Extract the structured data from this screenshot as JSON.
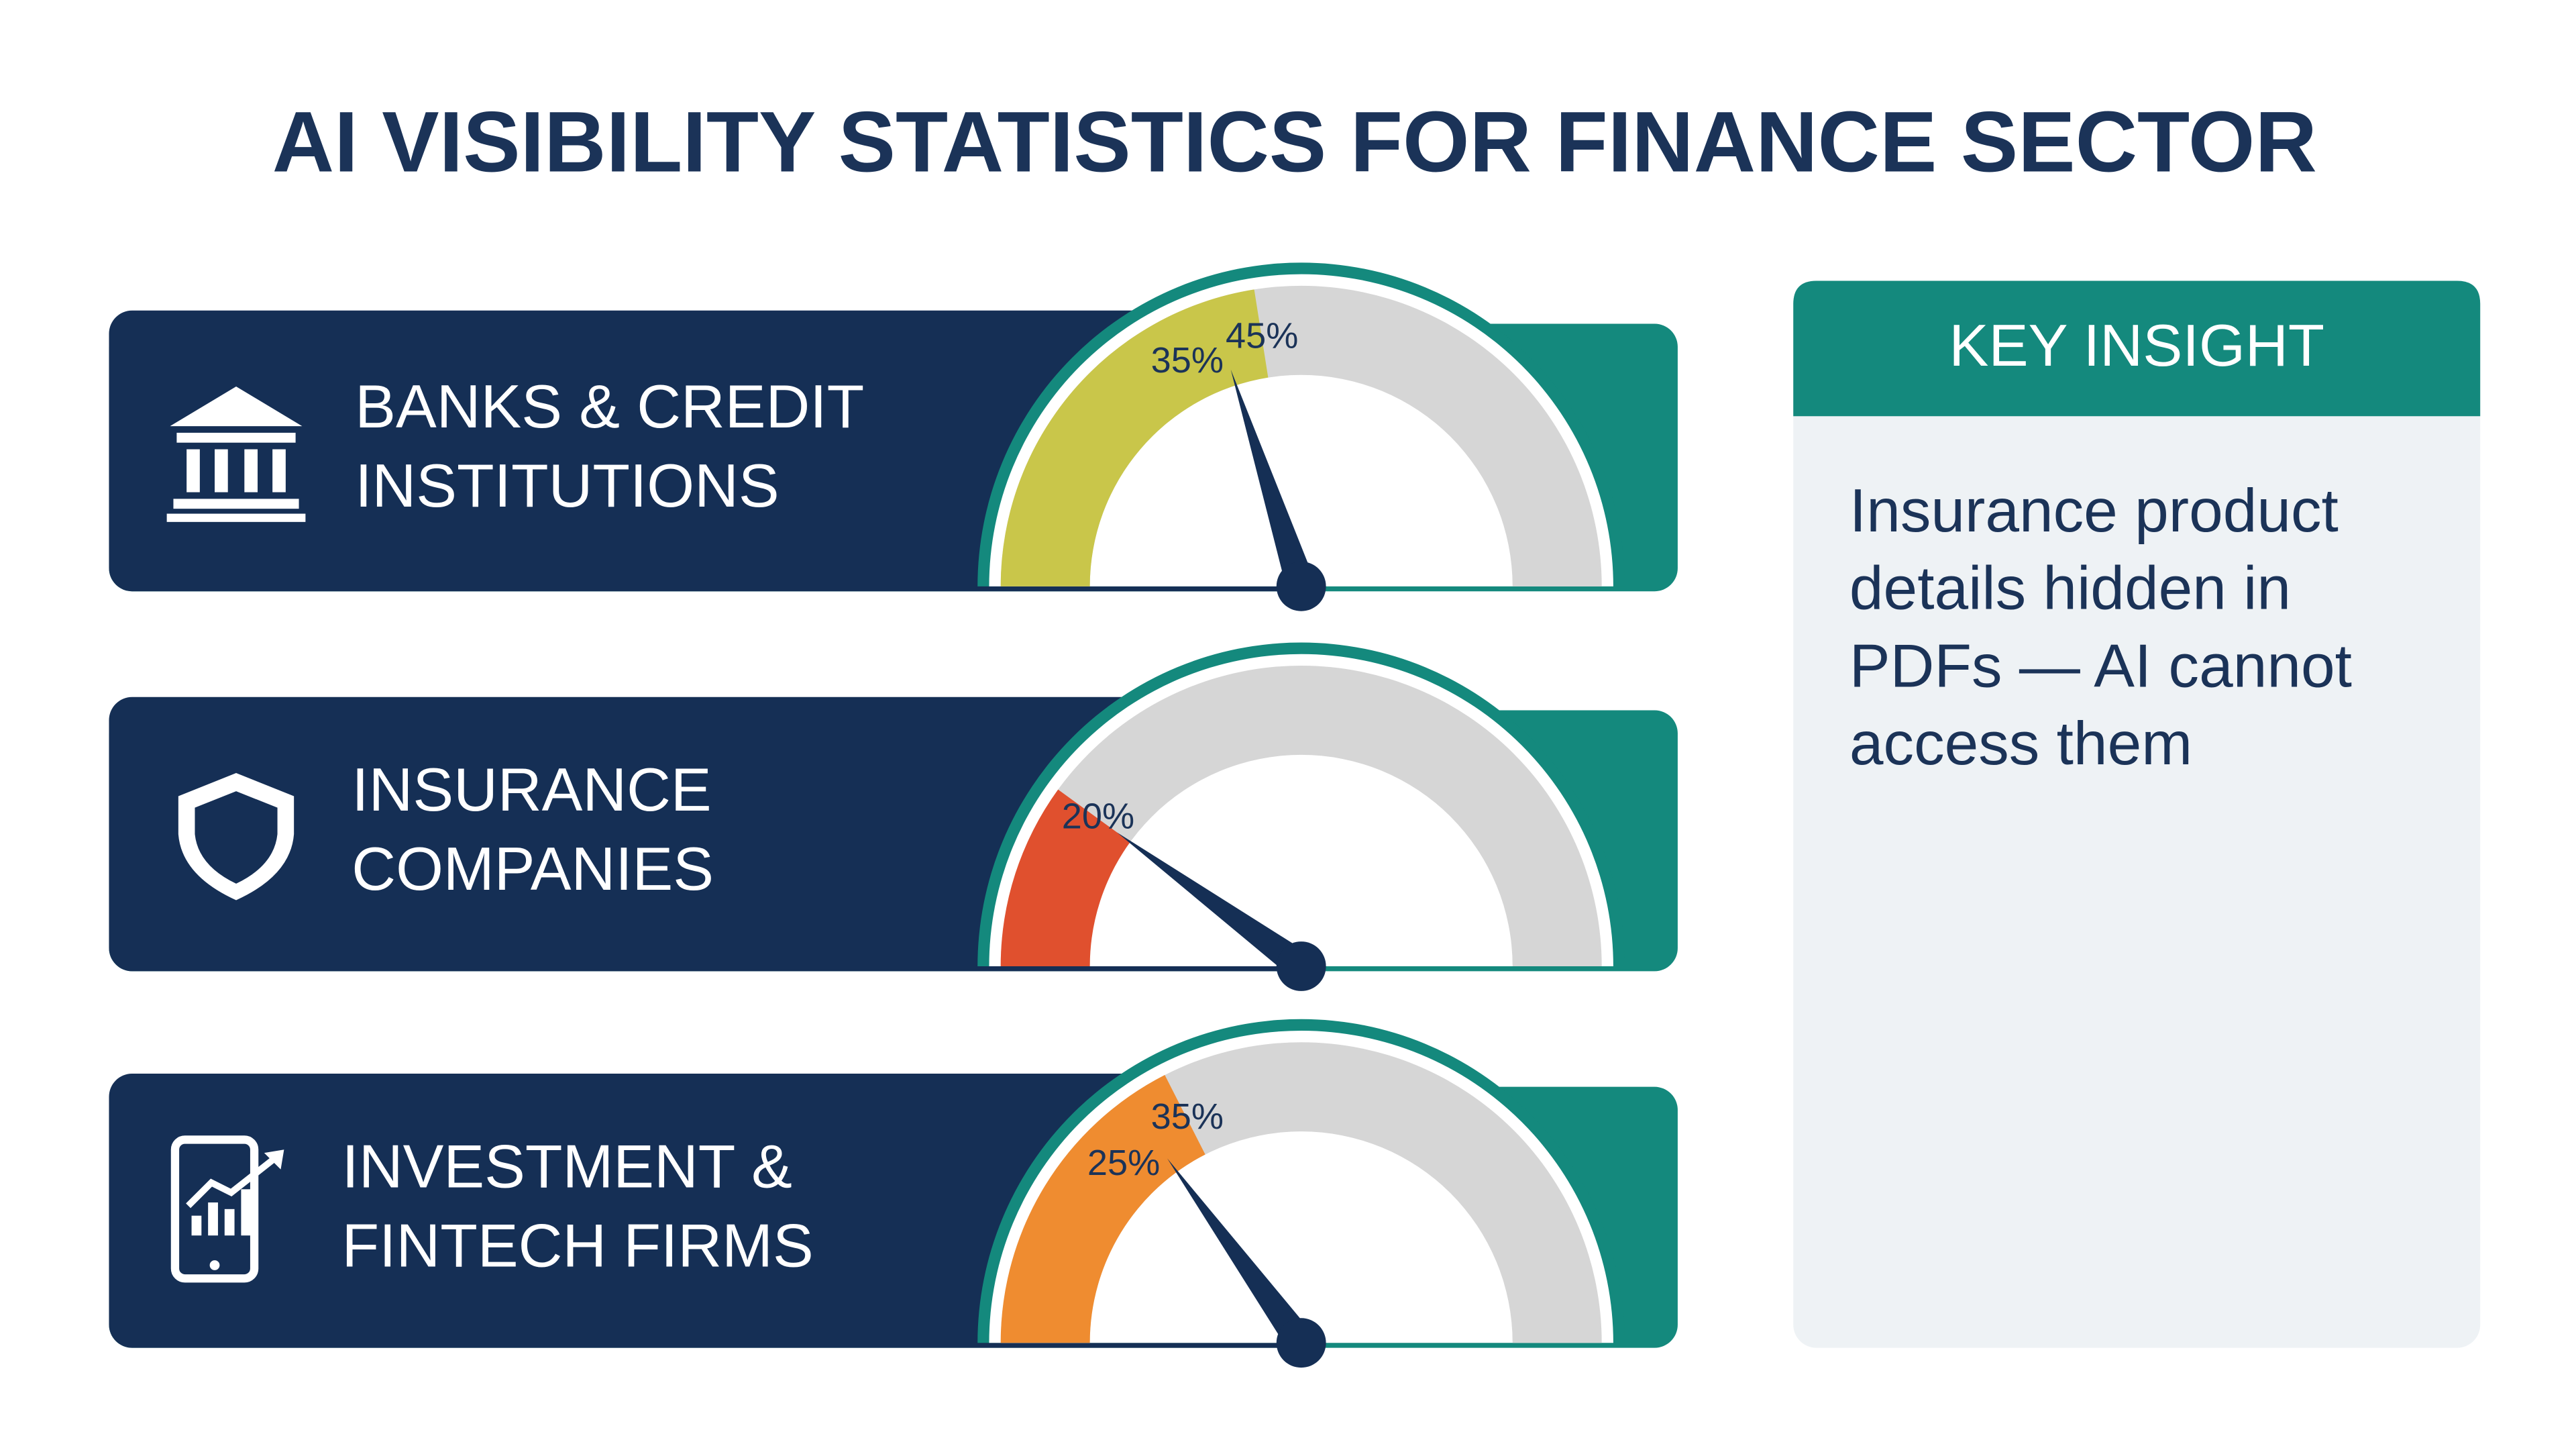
{
  "title": "AI VISIBILITY STATISTICS FOR FINANCE SECTOR",
  "gauge_range": [
    0,
    100
  ],
  "sectors": [
    {
      "name": [
        "BANKS & CREDIT",
        "INSTITUTIONS"
      ],
      "values": [
        35,
        45
      ],
      "value_labels": [
        "35%",
        "45%"
      ],
      "color": "#c9c64a"
    },
    {
      "name": [
        "INSURANCE",
        "COMPANIES"
      ],
      "values": [
        20
      ],
      "value_labels": [
        "20%"
      ],
      "color": "#e0502e"
    },
    {
      "name": [
        "INVESTMENT &",
        "FINTECH FIRMS"
      ],
      "values": [
        25,
        35
      ],
      "value_labels": [
        "25%",
        "35%"
      ],
      "color": "#ef8c30"
    }
  ],
  "key_insight": {
    "title": "KEY INSIGHT",
    "body": [
      "Insurance product",
      "details hidden in",
      "PDFs — AI cannot",
      "access them"
    ]
  }
}
